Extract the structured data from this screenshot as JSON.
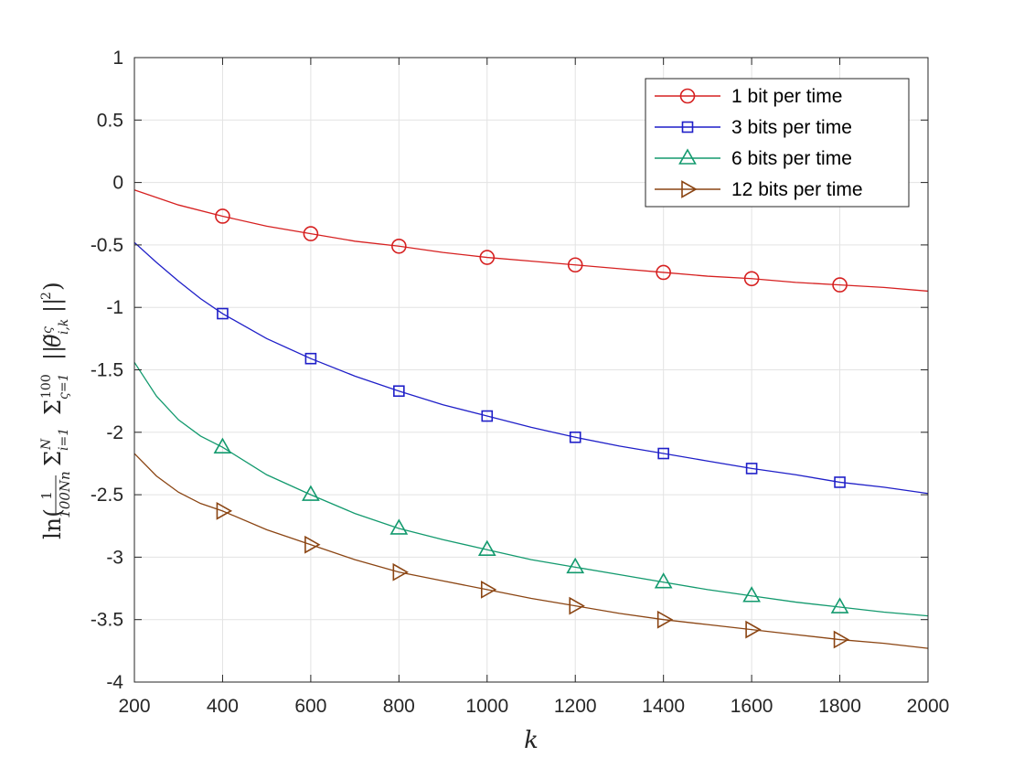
{
  "chart_data": {
    "type": "line",
    "title": "",
    "xlabel": "k",
    "ylabel": "ln((1/(100Nn)) Σ_{i=1}^{N} Σ_{ς=1}^{100} ||θ̃^ς_{i,k}||²)",
    "ylabel_parts": {
      "ln": "ln(",
      "frac_num": "1",
      "frac_den": "100Nn",
      "sum1": "Σ",
      "sum1_sub": "i=1",
      "sum1_sup": "N",
      "sum2": "Σ",
      "sum2_sub": "ς=1",
      "sum2_sup": "100",
      "norm_open": "||",
      "theta": "θ̃",
      "theta_sup": "ς",
      "theta_sub": "i,k",
      "norm_close": "||",
      "sq": "2",
      "close": ")"
    },
    "xlim": [
      200,
      2000
    ],
    "ylim": [
      -4,
      1
    ],
    "xticks": [
      "200",
      "400",
      "600",
      "800",
      "1000",
      "1200",
      "1400",
      "1600",
      "1800",
      "2000"
    ],
    "xtick_values": [
      200,
      400,
      600,
      800,
      1000,
      1200,
      1400,
      1600,
      1800,
      2000
    ],
    "yticks": [
      "1",
      "0.5",
      "0",
      "-0.5",
      "-1",
      "-1.5",
      "-2",
      "-2.5",
      "-3",
      "-3.5",
      "-4"
    ],
    "ytick_values": [
      1,
      0.5,
      0,
      -0.5,
      -1,
      -1.5,
      -2,
      -2.5,
      -3,
      -3.5,
      -4
    ],
    "grid": true,
    "legend_position": "top-right",
    "series": [
      {
        "name": "1 bit per time",
        "color": "#d62020",
        "marker": "circle",
        "x": [
          200,
          300,
          400,
          500,
          600,
          700,
          800,
          900,
          1000,
          1100,
          1200,
          1300,
          1400,
          1500,
          1600,
          1700,
          1800,
          1900,
          2000
        ],
        "values": [
          -0.06,
          -0.18,
          -0.27,
          -0.35,
          -0.41,
          -0.47,
          -0.51,
          -0.56,
          -0.6,
          -0.63,
          -0.66,
          -0.69,
          -0.72,
          -0.75,
          -0.77,
          -0.8,
          -0.82,
          -0.84,
          -0.87
        ],
        "marker_x": [
          400,
          600,
          800,
          1000,
          1200,
          1400,
          1600,
          1800
        ]
      },
      {
        "name": "3 bits per time",
        "color": "#1f1fc8",
        "marker": "square",
        "x": [
          200,
          250,
          300,
          350,
          400,
          500,
          600,
          700,
          800,
          900,
          1000,
          1100,
          1200,
          1300,
          1400,
          1500,
          1600,
          1700,
          1800,
          1900,
          2000
        ],
        "values": [
          -0.48,
          -0.64,
          -0.79,
          -0.93,
          -1.05,
          -1.25,
          -1.41,
          -1.55,
          -1.67,
          -1.78,
          -1.87,
          -1.96,
          -2.04,
          -2.11,
          -2.17,
          -2.23,
          -2.29,
          -2.34,
          -2.4,
          -2.44,
          -2.49
        ],
        "marker_x": [
          400,
          600,
          800,
          1000,
          1200,
          1400,
          1600,
          1800
        ]
      },
      {
        "name": "6 bits per time",
        "color": "#139a6e",
        "marker": "triangle-up",
        "x": [
          200,
          250,
          300,
          350,
          400,
          500,
          600,
          700,
          800,
          900,
          1000,
          1100,
          1200,
          1300,
          1400,
          1500,
          1600,
          1700,
          1800,
          1900,
          2000
        ],
        "values": [
          -1.44,
          -1.71,
          -1.9,
          -2.03,
          -2.12,
          -2.34,
          -2.5,
          -2.65,
          -2.77,
          -2.86,
          -2.94,
          -3.02,
          -3.08,
          -3.14,
          -3.2,
          -3.26,
          -3.31,
          -3.36,
          -3.4,
          -3.44,
          -3.47
        ],
        "marker_x": [
          400,
          600,
          800,
          1000,
          1200,
          1400,
          1600,
          1800
        ]
      },
      {
        "name": "12 bits per time",
        "color": "#8b4513",
        "marker": "triangle-right",
        "x": [
          200,
          250,
          300,
          350,
          400,
          500,
          600,
          700,
          800,
          900,
          1000,
          1100,
          1200,
          1300,
          1400,
          1500,
          1600,
          1700,
          1800,
          1900,
          2000
        ],
        "values": [
          -2.17,
          -2.35,
          -2.48,
          -2.57,
          -2.63,
          -2.78,
          -2.9,
          -3.02,
          -3.12,
          -3.19,
          -3.26,
          -3.33,
          -3.39,
          -3.45,
          -3.5,
          -3.54,
          -3.58,
          -3.62,
          -3.66,
          -3.69,
          -3.73
        ],
        "marker_x": [
          400,
          600,
          800,
          1000,
          1200,
          1400,
          1600,
          1800
        ]
      }
    ]
  }
}
